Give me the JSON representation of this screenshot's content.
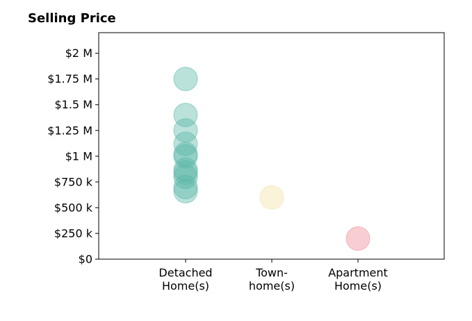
{
  "chart_data": {
    "type": "scatter",
    "title": "Selling Price",
    "xlabel": "",
    "ylabel": "",
    "categories": [
      [
        "Detached",
        "Home(s)"
      ],
      [
        "Town-",
        "home(s)"
      ],
      [
        "Apartment",
        "Home(s)"
      ]
    ],
    "ylim": [
      0,
      2200000
    ],
    "y_ticks": [
      0,
      250000,
      500000,
      750000,
      1000000,
      1250000,
      1500000,
      1750000,
      2000000
    ],
    "y_tick_labels": [
      "$0",
      "$250 k",
      "$500 k",
      "$750 k",
      "$1 M",
      "$1.25 M",
      "$1.5 M",
      "$1.75 M",
      "$2 M"
    ],
    "grid": false,
    "series": [
      {
        "category": 0,
        "color": "#5bb8a8",
        "values": [
          1750000,
          1400000,
          1250000,
          1120000,
          1020000,
          1000000,
          870000,
          840000,
          800000,
          700000,
          660000
        ]
      },
      {
        "category": 1,
        "color": "#f5dfa8",
        "values": [
          600000
        ]
      },
      {
        "category": 2,
        "color": "#ee8a93",
        "values": [
          200000
        ]
      }
    ]
  }
}
